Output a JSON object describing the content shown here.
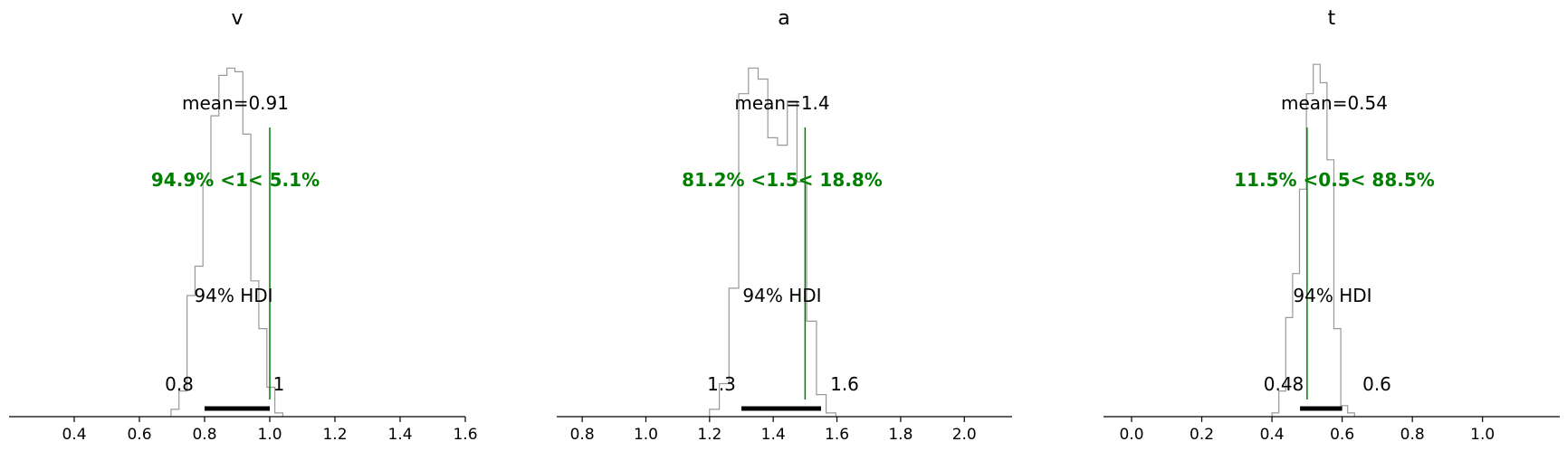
{
  "colors": {
    "histogram": "#999999",
    "reference": "#008000",
    "hdi": "#000000",
    "axis": "#000000"
  },
  "chart_data": [
    {
      "type": "histogram",
      "title": "v",
      "xlim": [
        0.2,
        1.6
      ],
      "xticks": [
        "0.4",
        "0.6",
        "0.8",
        "1.0",
        "1.2",
        "1.4",
        "1.6"
      ],
      "bins": {
        "start": 0.697,
        "width": 0.0245,
        "counts": [
          0.02,
          0.07,
          0.33,
          0.41,
          0.64,
          0.82,
          0.93,
          0.95,
          0.94,
          0.77,
          0.37,
          0.24,
          0.08,
          0.01
        ]
      },
      "mean_label": "mean=0.91",
      "ref_value": 1,
      "ref_label": "94.9% <1< 5.1%",
      "hdi_label": "94% HDI",
      "hdi": [
        0.8,
        1.0
      ],
      "hdi_low_label": "0.8",
      "hdi_high_label": "1"
    },
    {
      "type": "histogram",
      "title": "a",
      "xlim": [
        0.72,
        2.15
      ],
      "xticks": [
        "0.8",
        "1.0",
        "1.2",
        "1.4",
        "1.6",
        "1.8",
        "2.0"
      ],
      "bins": {
        "start": 1.2,
        "width": 0.0305,
        "counts": [
          0.02,
          0.09,
          0.35,
          0.88,
          0.95,
          0.92,
          0.76,
          0.74,
          0.86,
          0.64,
          0.26,
          0.06,
          0.01
        ]
      },
      "mean_label": "mean=1.4",
      "ref_value": 1.5,
      "ref_label": "81.2% <1.5< 18.8%",
      "hdi_label": "94% HDI",
      "hdi": [
        1.3,
        1.55
      ],
      "hdi_low_label": "1.3",
      "hdi_high_label": "1.6"
    },
    {
      "type": "histogram",
      "title": "t",
      "xlim": [
        -0.08,
        1.22
      ],
      "xticks": [
        "0.0",
        "0.2",
        "0.4",
        "0.6",
        "0.8",
        "1.0"
      ],
      "bins": {
        "start": 0.4,
        "width": 0.0196,
        "counts": [
          0.01,
          0.07,
          0.27,
          0.39,
          0.62,
          0.88,
          0.96,
          0.91,
          0.7,
          0.24,
          0.03,
          0.01
        ]
      },
      "mean_label": "mean=0.54",
      "ref_value": 0.5,
      "ref_label": "11.5% <0.5< 88.5%",
      "hdi_label": "94% HDI",
      "hdi": [
        0.48,
        0.6
      ],
      "hdi_low_label": "0.48",
      "hdi_high_label": "0.6"
    }
  ]
}
